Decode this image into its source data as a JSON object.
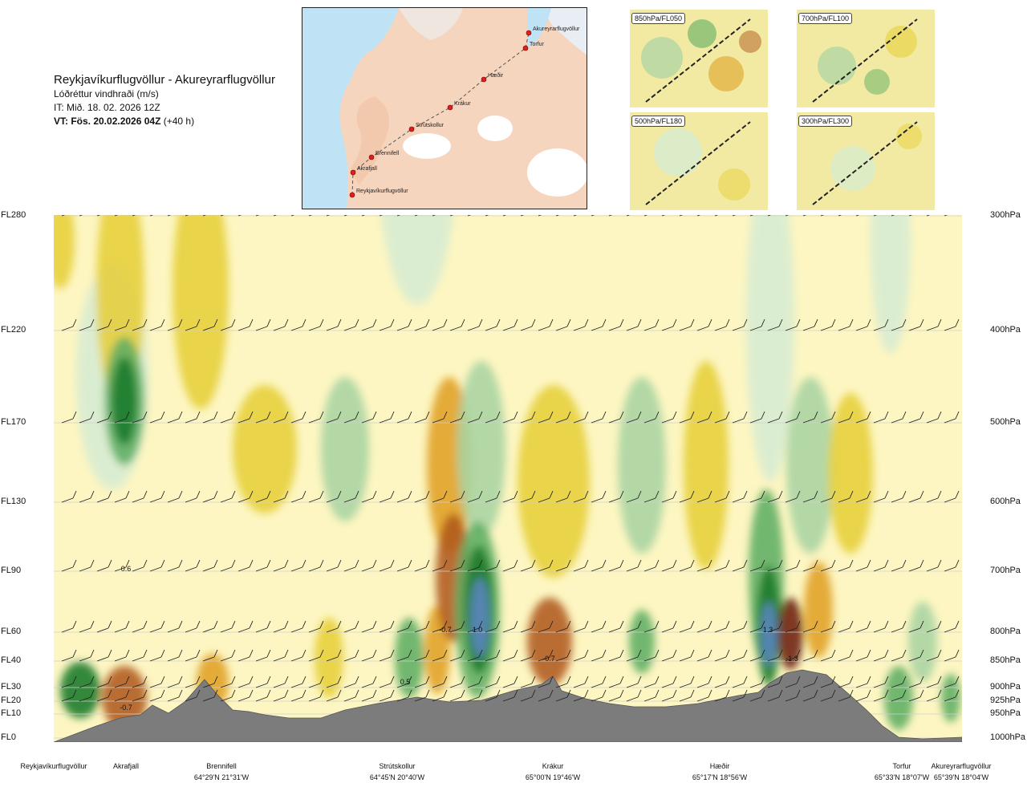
{
  "header": {
    "route": "Reykjavíkurflugvöllur - Akureyrarflugvöllur",
    "parameter": "Lóðréttur vindhraði (m/s)",
    "issue_time": "IT: Mið. 18. 02. 2026 12Z",
    "valid_time": "VT: Fös. 20.02.2026 04Z",
    "lead_time": "(+40 h)"
  },
  "route_map": {
    "points": [
      "Reykjavíkurflugvöllur",
      "Akrafjall",
      "Brennifell",
      "Strútskollur",
      "Krákur",
      "Hæðir",
      "Torfur",
      "Akureyrarflugvöllur"
    ]
  },
  "mini_maps": [
    {
      "label": "850hPa/FL050"
    },
    {
      "label": "700hPa/FL100"
    },
    {
      "label": "500hPa/FL180"
    },
    {
      "label": "300hPa/FL300"
    }
  ],
  "chart_data": {
    "type": "heatmap",
    "title": "Lóðréttur vindhraði (m/s)",
    "y_left_ticks": [
      "FL280",
      "FL220",
      "FL170",
      "FL130",
      "FL90",
      "FL60",
      "FL40",
      "FL30",
      "FL20",
      "FL10",
      "FL0"
    ],
    "y_right_ticks": [
      "300hPa",
      "400hPa",
      "500hPa",
      "600hPa",
      "700hPa",
      "800hPa",
      "850hPa",
      "900hPa",
      "925hPa",
      "950hPa",
      "1000hPa"
    ],
    "waypoints": [
      {
        "name": "Reykjavíkurflugvöllur",
        "coord": ""
      },
      {
        "name": "Akrafjall",
        "coord": ""
      },
      {
        "name": "Brennifell",
        "coord": "64°29'N 21°31'W"
      },
      {
        "name": "Strútskollur",
        "coord": "64°45'N 20°40'W"
      },
      {
        "name": "Krákur",
        "coord": "65°00'N 19°46'W"
      },
      {
        "name": "Hæðir",
        "coord": "65°17'N 18°56'W"
      },
      {
        "name": "Torfur",
        "coord": "65°33'N 18°07'W"
      },
      {
        "name": "Akureyrarflugvöllur",
        "coord": "65°39'N 18°04'W"
      }
    ],
    "annotations": [
      {
        "text": "0.6",
        "near": "Akrafjall",
        "level": "FL90"
      },
      {
        "text": "0.7",
        "near": "Reykjavíkurflugvöllur",
        "level": "FL10"
      },
      {
        "text": "-0.7",
        "near": "Akrafjall",
        "level": "FL10"
      },
      {
        "text": "0.5",
        "near": "Strútskollur",
        "level": "FL30"
      },
      {
        "text": "-0.7",
        "near": "Strútskollur",
        "level": "FL60"
      },
      {
        "text": "1.0",
        "near": "Strútskollur",
        "level": "FL60"
      },
      {
        "text": "-0.7",
        "near": "Krákur",
        "level": "FL40"
      },
      {
        "text": "1.3",
        "near": "Hæðir",
        "level": "FL60"
      },
      {
        "text": "-1.3",
        "near": "Hæðir",
        "level": "FL40"
      }
    ],
    "colors": {
      "strong_up": "#5b86c4",
      "up_dark": "#1a7a2a",
      "up_mid": "#5fae63",
      "up_light": "#a9d4a2",
      "up_faint": "#d6ecd2",
      "neutral": "#f5eea8",
      "down_faint": "#f2e68a",
      "down_light": "#e6cf3a",
      "down_mid": "#e0a127",
      "down_dark": "#b05a1b",
      "strong_down": "#6b1f12",
      "terrain": "#7c7c7c",
      "background": "#fdf6c2"
    },
    "grid": true,
    "legend": "none"
  }
}
